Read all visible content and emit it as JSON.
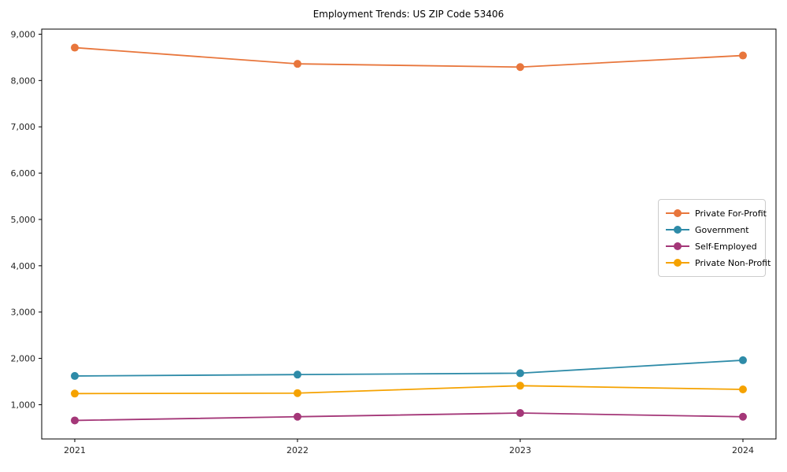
{
  "chart_data": {
    "type": "line",
    "title": "Employment Trends: US ZIP Code 53406",
    "categories": [
      "2021",
      "2022",
      "2023",
      "2024"
    ],
    "series": [
      {
        "name": "Private For-Profit",
        "color": "#E8763C",
        "values": [
          8710,
          8360,
          8290,
          8540
        ]
      },
      {
        "name": "Government",
        "color": "#2E8BA8",
        "values": [
          1620,
          1650,
          1680,
          1960
        ]
      },
      {
        "name": "Self-Employed",
        "color": "#A43778",
        "values": [
          660,
          740,
          820,
          740
        ]
      },
      {
        "name": "Private Non-Profit",
        "color": "#F5A200",
        "values": [
          1240,
          1250,
          1410,
          1330
        ]
      }
    ],
    "xlabel": "",
    "ylabel": "",
    "ylim": [
      260,
      9110
    ],
    "yticks": [
      1000,
      2000,
      3000,
      4000,
      5000,
      6000,
      7000,
      8000,
      9000
    ],
    "ytick_labels": [
      "1,000",
      "2,000",
      "3,000",
      "4,000",
      "5,000",
      "6,000",
      "7,000",
      "8,000",
      "9,000"
    ],
    "grid": false,
    "legend_position": "center-right",
    "marker": "circle",
    "axis_color": "#000000"
  }
}
